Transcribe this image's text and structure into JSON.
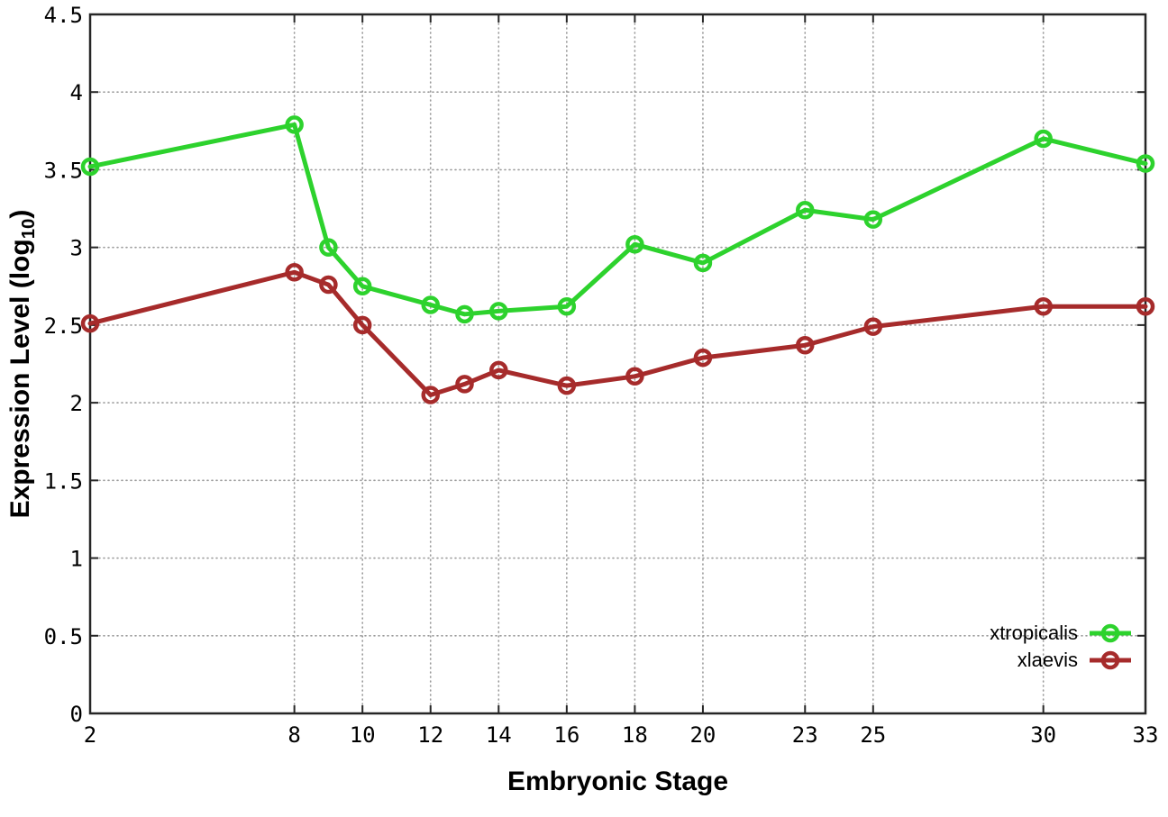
{
  "chart_data": {
    "type": "line",
    "title": "",
    "xlabel": "Embryonic Stage",
    "ylabel": "Expression Level (log10)",
    "ylabel_display": {
      "prefix": "Expression Level (log",
      "subscript": "10",
      "suffix": ")"
    },
    "x": [
      2,
      8,
      9,
      10,
      12,
      13,
      14,
      16,
      18,
      20,
      23,
      25,
      30,
      33
    ],
    "series": [
      {
        "name": "xtropicalis",
        "color": "#2dd22d",
        "marker": "open-circle",
        "values": [
          3.52,
          3.79,
          3.0,
          2.75,
          2.63,
          2.57,
          2.59,
          2.62,
          3.02,
          2.9,
          3.24,
          3.18,
          3.7,
          3.54
        ]
      },
      {
        "name": "xlaevis",
        "color": "#a62b2b",
        "marker": "open-circle",
        "values": [
          2.51,
          2.84,
          2.76,
          2.5,
          2.05,
          2.12,
          2.21,
          2.11,
          2.17,
          2.29,
          2.37,
          2.49,
          2.62,
          2.62
        ]
      }
    ],
    "xticks": {
      "values": [
        2,
        8,
        10,
        12,
        14,
        16,
        18,
        20,
        23,
        25,
        30,
        33
      ],
      "labels": [
        "2",
        "8",
        "10",
        "12",
        "14",
        "16",
        "18",
        "20",
        "23",
        "25",
        "30",
        "33"
      ]
    },
    "yticks": {
      "values": [
        0,
        0.5,
        1,
        1.5,
        2,
        2.5,
        3,
        3.5,
        4,
        4.5
      ],
      "labels": [
        "0",
        "0.5",
        "1",
        "1.5",
        "2",
        "2.5",
        "3",
        "3.5",
        "4",
        "4.5"
      ]
    },
    "xlim": [
      2,
      33
    ],
    "ylim": [
      0,
      4.5
    ],
    "grid": true,
    "grid_style": "dotted",
    "ticks_mirrored_inward": true,
    "legend_position": "bottom-right",
    "axis_color": "#262626",
    "grid_color": "#9a9a9a",
    "tick_label_color": "#000000",
    "background_color": "#ffffff"
  }
}
